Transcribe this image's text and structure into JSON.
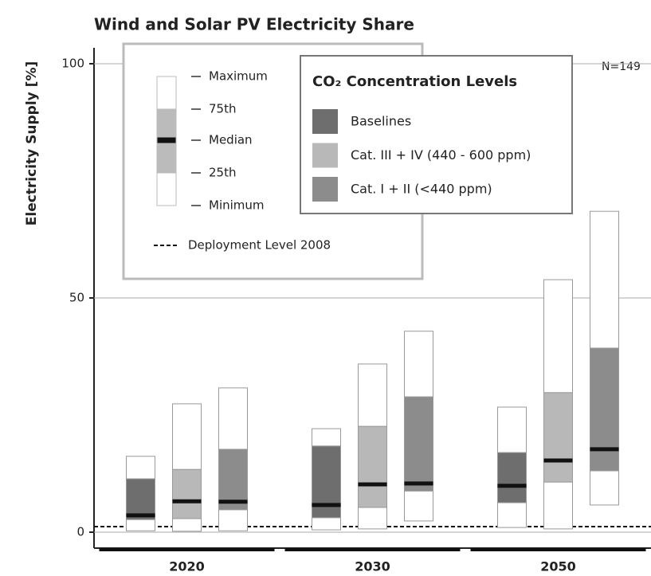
{
  "chart_data": {
    "type": "box",
    "title": "Wind and Solar PV Electricity Share",
    "y_label": "Electricity Supply [%]",
    "annotation": "N=149",
    "categories": [
      "2020",
      "2030",
      "2050"
    ],
    "ylim": [
      -3.4,
      103.4
    ],
    "yticks": [
      0,
      50,
      100
    ],
    "grid": true,
    "legend_title": "CO₂ Concentration Levels",
    "box_legend": [
      "Maximum",
      "75th",
      "Median",
      "25th",
      "Minimum"
    ],
    "deployment_label": "Deployment Level 2008",
    "deployment_level": 1.2,
    "series": [
      {
        "name": "Baselines",
        "color": "#6e6e6e",
        "min": [
          0.3,
          0.5,
          1.0
        ],
        "q1": [
          2.7,
          3.1,
          6.3
        ],
        "median": [
          3.6,
          5.8,
          9.9
        ],
        "q3": [
          11.4,
          18.4,
          17.0
        ],
        "max": [
          16.2,
          22.1,
          26.7
        ]
      },
      {
        "name": "Cat. III + IV (440 - 600 ppm)",
        "color": "#b8b8b8",
        "min": [
          0.2,
          0.7,
          0.7
        ],
        "q1": [
          2.9,
          5.3,
          10.7
        ],
        "median": [
          6.6,
          10.2,
          15.3
        ],
        "q3": [
          13.4,
          22.6,
          29.8
        ],
        "max": [
          27.4,
          35.9,
          53.9
        ]
      },
      {
        "name": "Cat. I + II (<440 ppm)",
        "color": "#8c8c8c",
        "min": [
          0.3,
          2.4,
          5.8
        ],
        "q1": [
          4.8,
          8.8,
          13.1
        ],
        "median": [
          6.5,
          10.4,
          17.7
        ],
        "q3": [
          17.7,
          28.9,
          39.3
        ],
        "max": [
          30.8,
          42.9,
          68.5
        ]
      }
    ]
  }
}
